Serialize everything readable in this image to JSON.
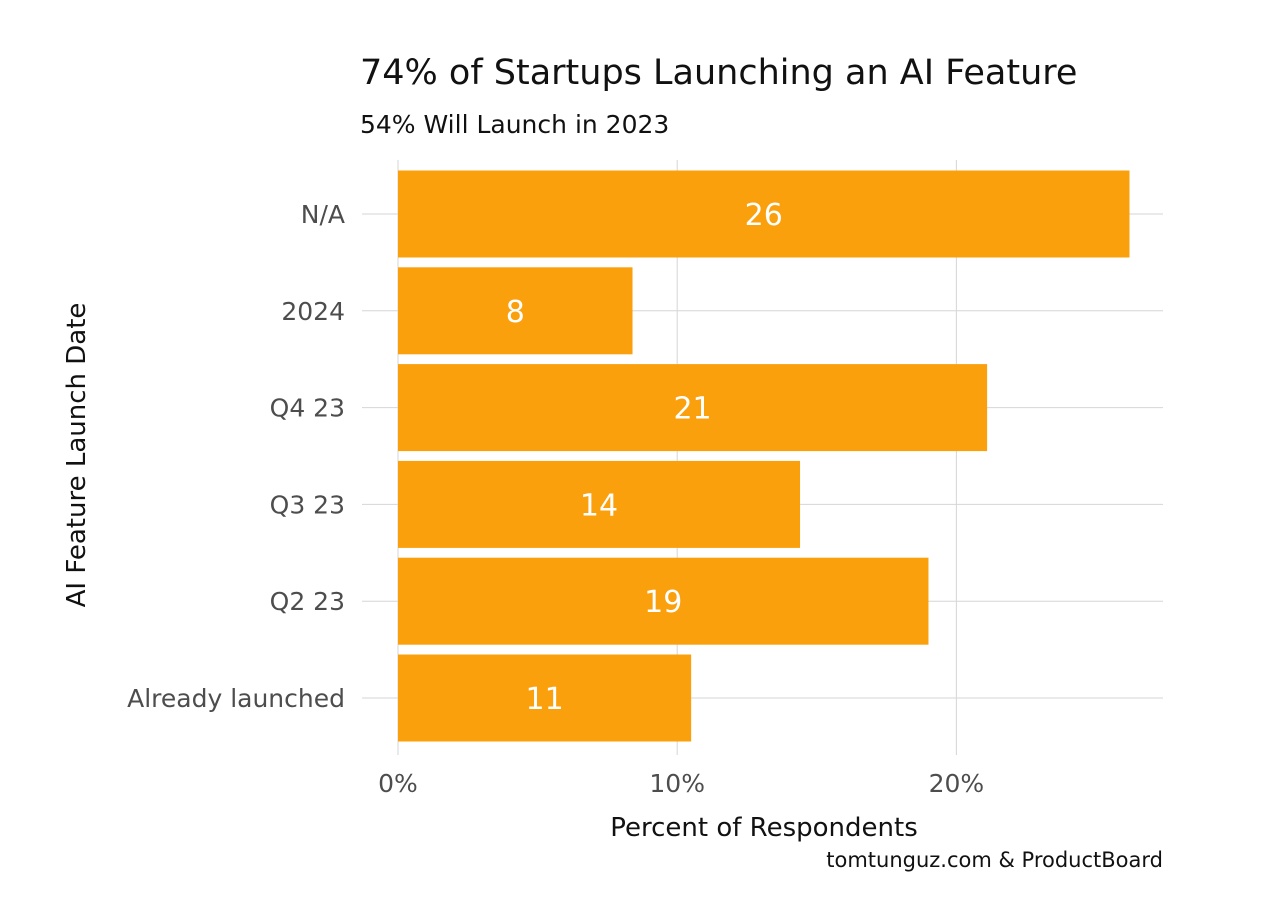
{
  "chart_data": {
    "type": "bar",
    "orientation": "horizontal",
    "title": "74% of Startups Launching an AI Feature",
    "subtitle": "54% Will Launch in 2023",
    "xlabel": "Percent of Respondents",
    "ylabel": "AI Feature Launch Date",
    "caption": "tomtunguz.com & ProductBoard",
    "categories": [
      "N/A",
      "2024",
      "Q4 23",
      "Q3 23",
      "Q2 23",
      "Already launched"
    ],
    "values": [
      26.2,
      8.4,
      21.1,
      14.4,
      19.0,
      10.5
    ],
    "data_labels": [
      "26",
      "8",
      "21",
      "14",
      "19",
      "11"
    ],
    "xlim": [
      0,
      27.4
    ],
    "x_ticks": [
      0,
      10,
      20
    ],
    "x_tick_labels": [
      "0%",
      "10%",
      "20%"
    ],
    "grid": true,
    "bar_color": "#FBA00D",
    "label_color": "#FFFFFF",
    "grid_color": "#D6D6D6",
    "background": "#FFFFFF"
  }
}
